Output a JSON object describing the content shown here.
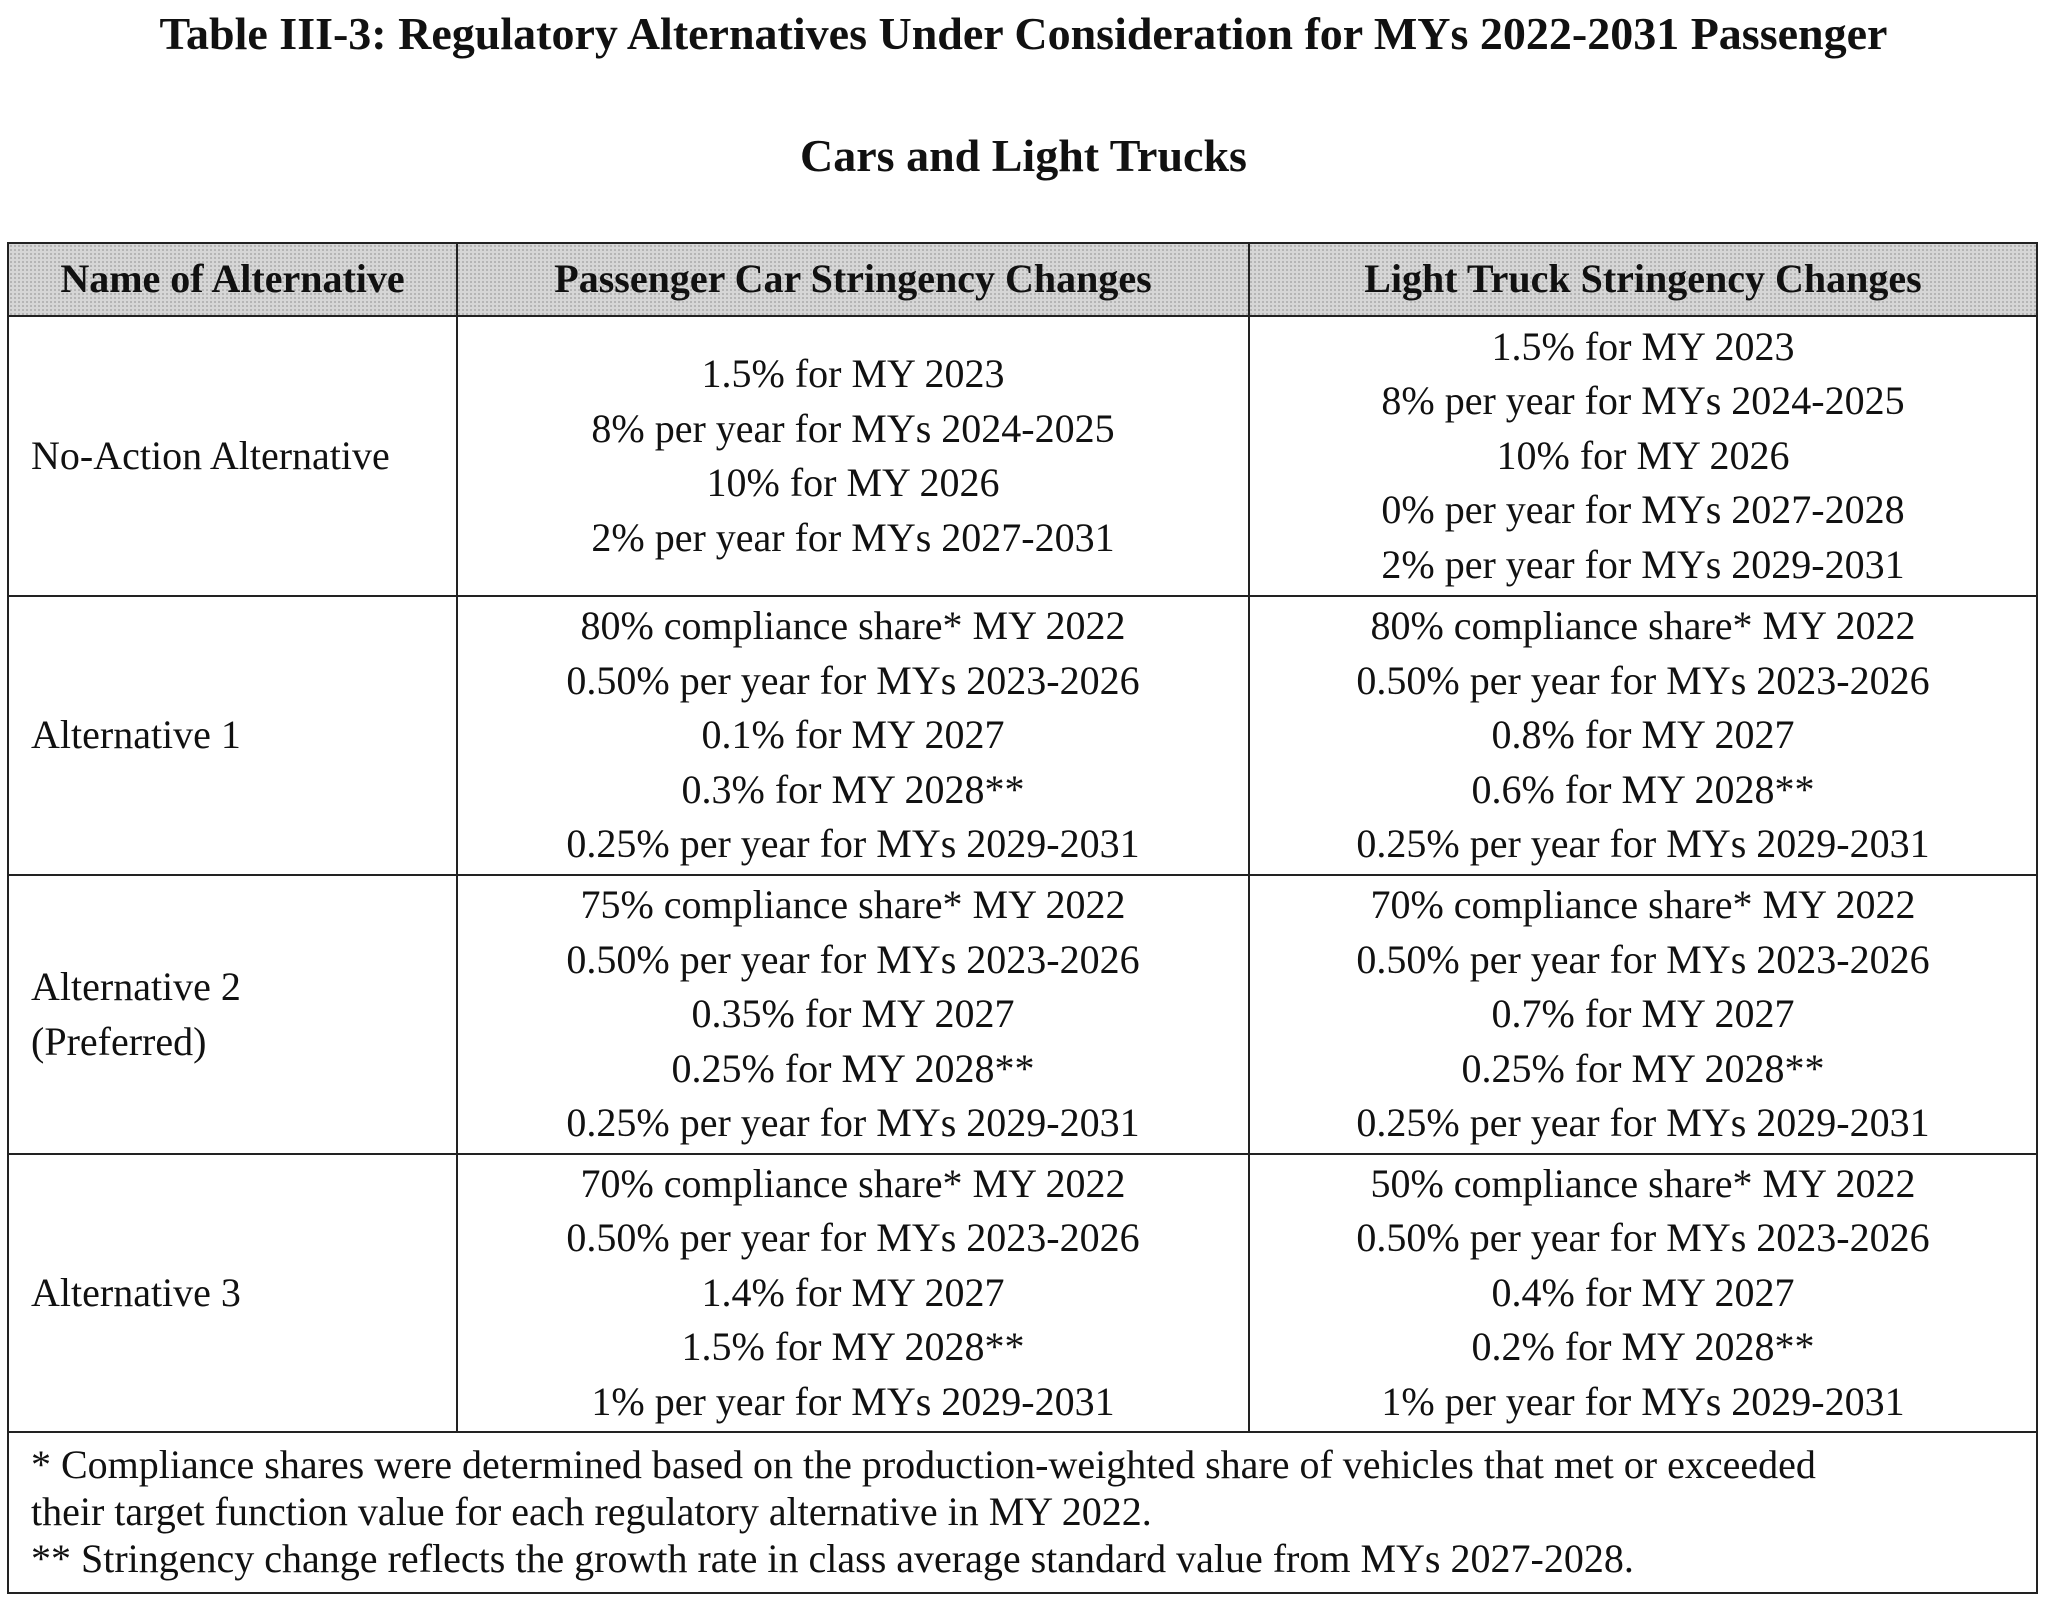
{
  "header": {
    "title_lines": [
      "Table III-3: Regulatory Alternatives Under Consideration for MYs 2022-2031 Passenger",
      "Cars and Light Trucks"
    ]
  },
  "table": {
    "columns": [
      "Name of Alternative",
      "Passenger Car Stringency Changes",
      "Light Truck Stringency Changes"
    ],
    "rows": [
      [
        [
          "No-Action Alternative"
        ],
        [
          "1.5% for MY 2023",
          "8% per year for MYs 2024-2025",
          "10% for MY 2026",
          "2% per year for MYs 2027-2031"
        ],
        [
          "1.5% for MY 2023",
          "8% per year for MYs 2024-2025",
          "10% for MY 2026",
          "0% per year for MYs 2027-2028",
          "2% per year for MYs 2029-2031"
        ]
      ],
      [
        [
          "Alternative 1"
        ],
        [
          "80% compliance share* MY 2022",
          "0.50% per year for MYs 2023-2026",
          "0.1% for MY 2027",
          "0.3% for MY 2028**",
          "0.25% per year for MYs 2029-2031"
        ],
        [
          "80% compliance share* MY 2022",
          "0.50% per year for MYs 2023-2026",
          "0.8% for MY 2027",
          "0.6% for MY 2028**",
          "0.25% per year for MYs 2029-2031"
        ]
      ],
      [
        [
          "Alternative 2",
          "(Preferred)"
        ],
        [
          "75% compliance share* MY 2022",
          "0.50% per year for MYs 2023-2026",
          "0.35% for MY 2027",
          "0.25% for MY 2028**",
          "0.25% per year for MYs 2029-2031"
        ],
        [
          "70% compliance share* MY 2022",
          "0.50% per year for MYs 2023-2026",
          "0.7% for MY 2027",
          "0.25% for MY 2028**",
          "0.25% per year for MYs 2029-2031"
        ]
      ],
      [
        [
          "Alternative 3"
        ],
        [
          "70% compliance share* MY 2022",
          "0.50% per year for MYs 2023-2026",
          "1.4% for MY 2027",
          "1.5% for MY 2028**",
          "1% per year for MYs 2029-2031"
        ],
        [
          "50% compliance share* MY 2022",
          "0.50% per year for MYs 2023-2026",
          "0.4% for MY 2027",
          "0.2% for MY 2028**",
          "1% per year for MYs 2029-2031"
        ]
      ]
    ],
    "footnote_lines": [
      "* Compliance shares were determined based on the production-weighted share of vehicles that met or exceeded",
      "their target function value for each regulatory alternative in MY 2022.",
      "** Stringency change reflects the growth rate in class average standard value from MYs 2027-2028."
    ]
  }
}
